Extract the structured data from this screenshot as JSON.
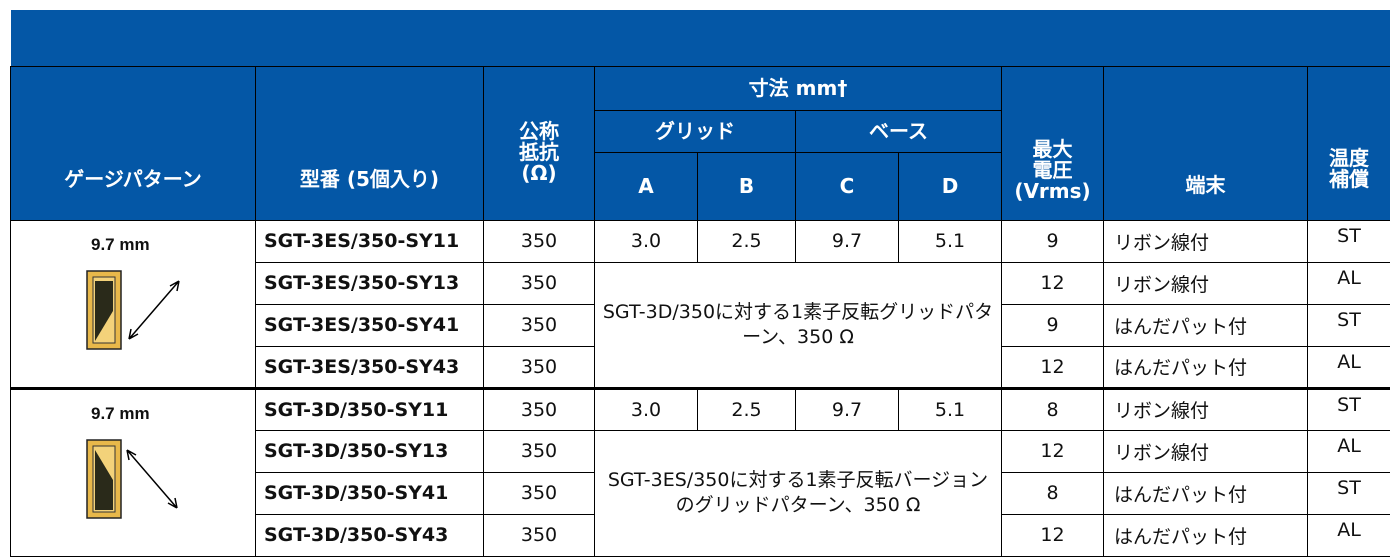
{
  "header": {
    "gauge_pattern": "ゲージパターン",
    "model": "型番 (5個入り)",
    "resistance": [
      "公称",
      "抵抗",
      "(Ω)"
    ],
    "dimensions": "寸法 mm†",
    "grid": "グリッド",
    "base": "ベース",
    "dims": [
      "A",
      "B",
      "C",
      "D"
    ],
    "voltage": [
      "最大",
      "電圧",
      "(Vrms)"
    ],
    "terminal": "端末",
    "compensation": [
      "温度",
      "補償"
    ]
  },
  "groups": [
    {
      "pattern_label": "9.7 mm",
      "dims": [
        "3.0",
        "2.5",
        "9.7",
        "5.1"
      ],
      "note": "SGT-3D/350に対する1素子反転グリッドパターン、350 Ω",
      "rows": [
        {
          "model": "SGT-3ES/350-SY11",
          "resistance": "350",
          "voltage": "9",
          "terminal": "リボン線付",
          "compensation": "ST"
        },
        {
          "model": "SGT-3ES/350-SY13",
          "resistance": "350",
          "voltage": "12",
          "terminal": "リボン線付",
          "compensation": "AL"
        },
        {
          "model": "SGT-3ES/350-SY41",
          "resistance": "350",
          "voltage": "9",
          "terminal": "はんだパット付",
          "compensation": "ST"
        },
        {
          "model": "SGT-3ES/350-SY43",
          "resistance": "350",
          "voltage": "12",
          "terminal": "はんだパット付",
          "compensation": "AL"
        }
      ]
    },
    {
      "pattern_label": "9.7 mm",
      "dims": [
        "3.0",
        "2.5",
        "9.7",
        "5.1"
      ],
      "note": "SGT-3ES/350に対する1素子反転バージョンのグリッドパターン、350 Ω",
      "rows": [
        {
          "model": "SGT-3D/350-SY11",
          "resistance": "350",
          "voltage": "8",
          "terminal": "リボン線付",
          "compensation": "ST"
        },
        {
          "model": "SGT-3D/350-SY13",
          "resistance": "350",
          "voltage": "12",
          "terminal": "リボン線付",
          "compensation": "AL"
        },
        {
          "model": "SGT-3D/350-SY41",
          "resistance": "350",
          "voltage": "8",
          "terminal": "はんだパット付",
          "compensation": "ST"
        },
        {
          "model": "SGT-3D/350-SY43",
          "resistance": "350",
          "voltage": "12",
          "terminal": "はんだパット付",
          "compensation": "AL"
        }
      ]
    }
  ]
}
